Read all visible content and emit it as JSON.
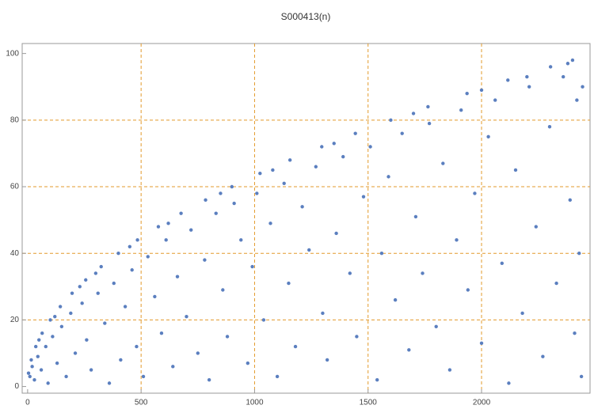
{
  "chart_data": {
    "type": "scatter",
    "title": "S000413(n)",
    "series": [
      {
        "color": "#5b7fbf",
        "x": [
          4,
          16,
          36,
          64,
          100,
          144,
          196,
          256,
          324,
          400,
          484,
          576,
          676,
          784,
          900,
          1024,
          1156,
          1296,
          1444,
          1600,
          1764,
          1936,
          2116,
          2304,
          2401,
          50,
          120,
          230,
          300,
          450,
          620,
          850,
          1080,
          1350,
          1700,
          2000,
          2200,
          2380,
          10,
          20,
          30,
          45,
          60,
          80,
          90,
          110,
          130,
          150,
          170,
          190,
          210,
          240,
          260,
          280,
          310,
          340,
          360,
          380,
          410,
          430,
          460,
          480,
          510,
          530,
          560,
          590,
          610,
          640,
          660,
          700,
          720,
          750,
          780,
          800,
          830,
          860,
          880,
          910,
          940,
          970,
          990,
          1010,
          1040,
          1070,
          1100,
          1130,
          1150,
          1180,
          1210,
          1240,
          1270,
          1300,
          1320,
          1360,
          1390,
          1420,
          1450,
          1480,
          1510,
          1540,
          1560,
          1590,
          1620,
          1650,
          1680,
          1710,
          1740,
          1770,
          1800,
          1830,
          1860,
          1890,
          1910,
          1940,
          1970,
          2000,
          2030,
          2060,
          2090,
          2120,
          2150,
          2180,
          2210,
          2240,
          2270,
          2300,
          2330,
          2360,
          2390,
          2410,
          2420,
          2430,
          2440,
          2445
        ],
        "values": [
          4,
          8,
          12,
          16,
          20,
          24,
          28,
          32,
          36,
          40,
          44,
          48,
          52,
          56,
          60,
          64,
          68,
          72,
          76,
          80,
          84,
          88,
          92,
          96,
          98,
          14,
          21,
          30,
          34,
          42,
          49,
          58,
          65,
          73,
          82,
          89,
          93,
          97,
          3,
          6,
          2,
          9,
          5,
          12,
          1,
          15,
          7,
          18,
          3,
          22,
          10,
          25,
          14,
          5,
          28,
          19,
          1,
          31,
          8,
          24,
          35,
          12,
          3,
          39,
          27,
          16,
          44,
          6,
          33,
          21,
          47,
          10,
          38,
          2,
          52,
          29,
          15,
          55,
          44,
          7,
          36,
          58,
          20,
          49,
          3,
          61,
          31,
          12,
          54,
          41,
          66,
          22,
          8,
          46,
          69,
          34,
          15,
          57,
          72,
          2,
          40,
          63,
          26,
          76,
          11,
          51,
          34,
          79,
          18,
          67,
          5,
          44,
          83,
          29,
          58,
          13,
          75,
          86,
          37,
          1,
          65,
          22,
          90,
          48,
          9,
          78,
          31,
          93,
          56,
          16,
          86,
          40,
          3,
          90
        ]
      }
    ],
    "xlim": [
      -24,
      2478
    ],
    "ylim": [
      -2,
      103
    ],
    "xticks": [
      0,
      500,
      1000,
      1500,
      2000
    ],
    "yticks": [
      0,
      20,
      40,
      60,
      80,
      100
    ],
    "xgrid": [
      500,
      1000,
      1500,
      2000
    ],
    "ygrid": [
      20,
      40,
      60,
      80
    ],
    "grid_color": "#e39a2b"
  }
}
